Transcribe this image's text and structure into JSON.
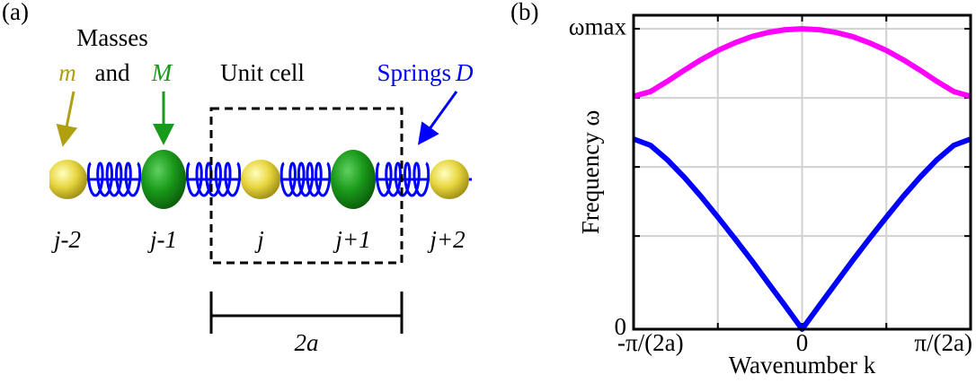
{
  "panel_a": {
    "label": "(a)",
    "masses_title": "Masses",
    "mass_m": "m",
    "and": "and",
    "mass_M": "M",
    "unit_cell": "Unit cell",
    "springs": "Springs",
    "spring_D": "D",
    "sites": [
      "j-2",
      "j-1",
      "j",
      "j+1",
      "j+2"
    ],
    "period": "2a"
  },
  "chart_data": {
    "type": "line",
    "panel_label": "(b)",
    "x_label": "Wavenumber k",
    "y_label": "Frequency ω",
    "x": [
      -1,
      -0.9,
      -0.8,
      -0.7,
      -0.6,
      -0.5,
      -0.4,
      -0.3,
      -0.2,
      -0.1,
      0,
      0.1,
      0.2,
      0.3,
      0.4,
      0.5,
      0.6,
      0.7,
      0.8,
      0.9,
      1
    ],
    "series": [
      {
        "color": "#ff00ff",
        "values": [
          0.775,
          0.791,
          0.825,
          0.862,
          0.897,
          0.928,
          0.953,
          0.974,
          0.988,
          0.997,
          1,
          0.997,
          0.988,
          0.974,
          0.953,
          0.928,
          0.897,
          0.862,
          0.825,
          0.791,
          0.775
        ]
      },
      {
        "color": "#0000ff",
        "values": [
          0.633,
          0.612,
          0.564,
          0.506,
          0.442,
          0.373,
          0.302,
          0.229,
          0.153,
          0.077,
          0,
          0.077,
          0.153,
          0.229,
          0.302,
          0.373,
          0.442,
          0.506,
          0.564,
          0.612,
          0.633
        ]
      }
    ],
    "xlim": [
      -1,
      1
    ],
    "ylim": [
      0,
      1.045
    ],
    "xticks": [
      {
        "value": -1,
        "label": "-π/(2a)"
      },
      {
        "value": -0.5,
        "label": null
      },
      {
        "value": 0,
        "label": "0"
      },
      {
        "value": 0.5,
        "label": null
      },
      {
        "value": 1,
        "label": "π/(2a)"
      }
    ],
    "yticks": [
      0,
      {
        "value": 0.31,
        "label": null
      },
      {
        "value": 0.54,
        "label": null
      },
      {
        "value": 0.77,
        "label": null
      },
      {
        "value": 1,
        "label": "ωmax"
      }
    ],
    "grid": true
  }
}
